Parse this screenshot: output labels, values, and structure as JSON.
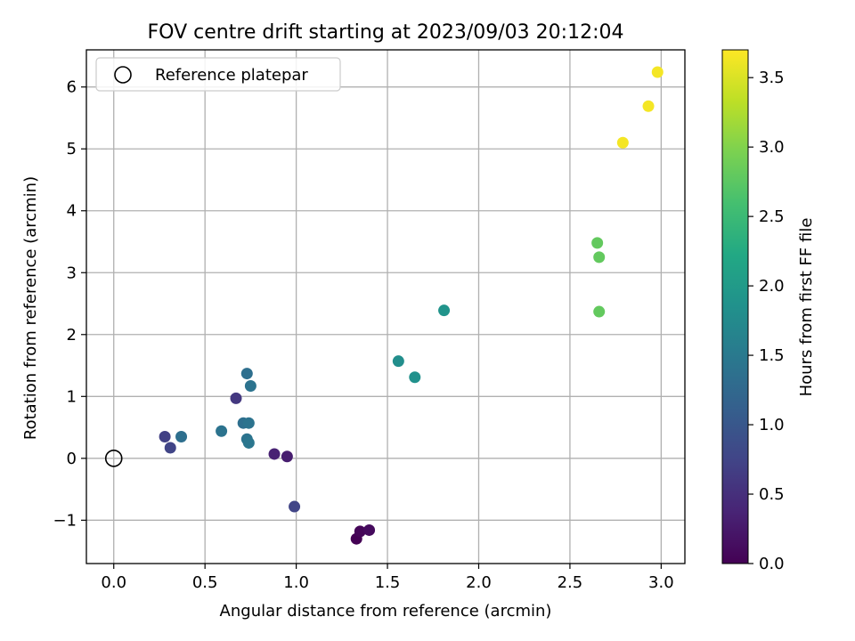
{
  "chart_data": {
    "type": "scatter",
    "title": "FOV centre drift starting at 2023/09/03 20:12:04",
    "xlabel": "Angular distance from reference (arcmin)",
    "ylabel": "Rotation from reference (arcmin)",
    "xlim": [
      -0.15,
      3.13
    ],
    "ylim": [
      -1.7,
      6.6
    ],
    "xticks": [
      0.0,
      0.5,
      1.0,
      1.5,
      2.0,
      2.5,
      3.0
    ],
    "xtick_labels": [
      "0.0",
      "0.5",
      "1.0",
      "1.5",
      "2.0",
      "2.5",
      "3.0"
    ],
    "yticks": [
      -1,
      0,
      1,
      2,
      3,
      4,
      5,
      6
    ],
    "ytick_labels": [
      "−1",
      "0",
      "1",
      "2",
      "3",
      "4",
      "5",
      "6"
    ],
    "grid": true,
    "legend": {
      "position": "upper-left",
      "entries": [
        {
          "label": "Reference platepar",
          "marker": "open-circle",
          "color": "#000000"
        }
      ]
    },
    "reference_point": {
      "x": 0.0,
      "y": 0.0
    },
    "colorbar": {
      "label": "Hours from first FF file",
      "colormap": "viridis",
      "range": [
        0.0,
        3.7
      ],
      "ticks": [
        0.0,
        0.5,
        1.0,
        1.5,
        2.0,
        2.5,
        3.0,
        3.5
      ],
      "tick_labels": [
        "0.0",
        "0.5",
        "1.0",
        "1.5",
        "2.0",
        "2.5",
        "3.0",
        "3.5"
      ]
    },
    "points": [
      {
        "x": 1.33,
        "y": -1.3,
        "hours": 0.0
      },
      {
        "x": 1.35,
        "y": -1.18,
        "hours": 0.05
      },
      {
        "x": 1.4,
        "y": -1.16,
        "hours": 0.1
      },
      {
        "x": 0.95,
        "y": 0.03,
        "hours": 0.3
      },
      {
        "x": 0.88,
        "y": 0.07,
        "hours": 0.35
      },
      {
        "x": 0.67,
        "y": 0.97,
        "hours": 0.6
      },
      {
        "x": 0.99,
        "y": -0.78,
        "hours": 0.75
      },
      {
        "x": 0.28,
        "y": 0.35,
        "hours": 0.7
      },
      {
        "x": 0.31,
        "y": 0.17,
        "hours": 0.75
      },
      {
        "x": 0.37,
        "y": 0.35,
        "hours": 1.35
      },
      {
        "x": 0.59,
        "y": 0.44,
        "hours": 1.4
      },
      {
        "x": 0.71,
        "y": 0.57,
        "hours": 1.35
      },
      {
        "x": 0.74,
        "y": 0.57,
        "hours": 1.4
      },
      {
        "x": 0.73,
        "y": 0.31,
        "hours": 1.4
      },
      {
        "x": 0.74,
        "y": 0.25,
        "hours": 1.45
      },
      {
        "x": 0.73,
        "y": 1.37,
        "hours": 1.35
      },
      {
        "x": 0.75,
        "y": 1.17,
        "hours": 1.4
      },
      {
        "x": 1.56,
        "y": 1.57,
        "hours": 1.8
      },
      {
        "x": 1.65,
        "y": 1.31,
        "hours": 1.85
      },
      {
        "x": 1.81,
        "y": 2.39,
        "hours": 1.9
      },
      {
        "x": 2.65,
        "y": 3.48,
        "hours": 2.8
      },
      {
        "x": 2.66,
        "y": 3.25,
        "hours": 2.8
      },
      {
        "x": 2.66,
        "y": 2.37,
        "hours": 2.8
      },
      {
        "x": 2.79,
        "y": 5.1,
        "hours": 3.65
      },
      {
        "x": 2.93,
        "y": 5.69,
        "hours": 3.65
      },
      {
        "x": 2.98,
        "y": 6.24,
        "hours": 3.65
      }
    ]
  }
}
